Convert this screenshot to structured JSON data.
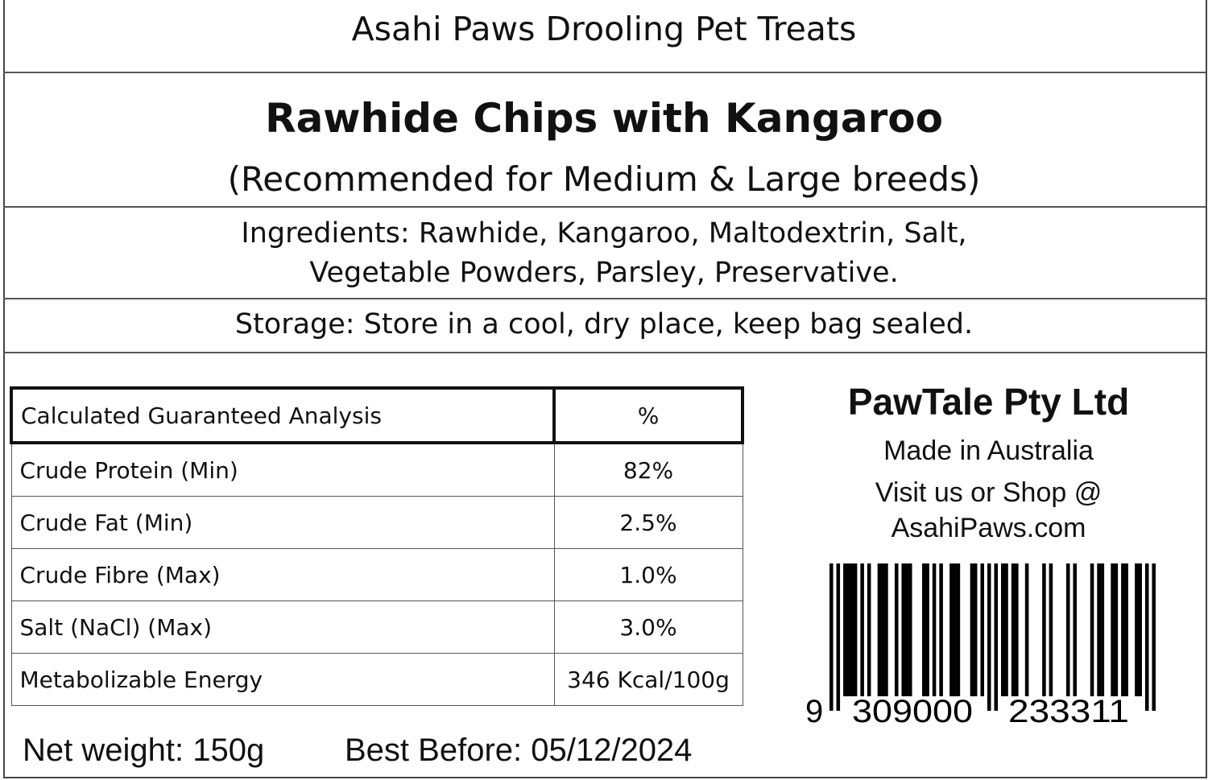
{
  "header": {
    "brand": "Asahi Paws Drooling Pet Treats"
  },
  "product": {
    "name": "Rawhide Chips with Kangaroo",
    "recommendation": "(Recommended for Medium & Large breeds)"
  },
  "ingredients": {
    "line1": "Ingredients: Rawhide, Kangaroo, Maltodextrin, Salt,",
    "line2": "Vegetable Powders, Parsley, Preservative."
  },
  "storage": "Storage: Store in a cool, dry place, keep bag sealed.",
  "analysis_table": {
    "headers": [
      "Calculated Guaranteed Analysis",
      "%"
    ],
    "rows": [
      {
        "label": "Crude Protein (Min)",
        "value": "82%"
      },
      {
        "label": "Crude Fat (Min)",
        "value": "2.5%"
      },
      {
        "label": "Crude Fibre (Max)",
        "value": "1.0%"
      },
      {
        "label": "Salt (NaCl) (Max)",
        "value": "3.0%"
      },
      {
        "label": "Metabolizable Energy",
        "value": "346 Kcal/100g"
      }
    ]
  },
  "company": {
    "name": "PawTale Pty Ltd",
    "origin": "Made in Australia",
    "visit": "Visit us or Shop @",
    "website": "AsahiPaws.com"
  },
  "barcode": {
    "first": "9",
    "left": "309000",
    "right": "233311"
  },
  "footer": {
    "net_weight": "Net weight: 150g",
    "best_before": "Best Before: 05/12/2024"
  }
}
